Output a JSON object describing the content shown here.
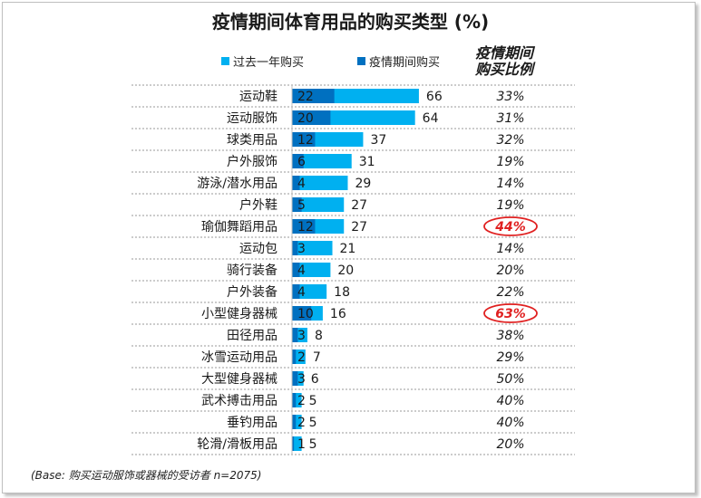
{
  "chart_data": {
    "type": "bar",
    "title": "疫情期间体育用品的购买类型 (%)",
    "categories": [
      "运动鞋",
      "运动服饰",
      "球类用品",
      "户外服饰",
      "游泳/潜水用品",
      "户外鞋",
      "瑜伽舞蹈用品",
      "运动包",
      "骑行装备",
      "户外装备",
      "小型健身器械",
      "田径用品",
      "冰雪运动用品",
      "大型健身器械",
      "武术搏击用品",
      "垂钓用品",
      "轮滑/滑板用品"
    ],
    "series": [
      {
        "name": "过去一年购买",
        "color": "#00b0f0",
        "values": [
          66,
          64,
          37,
          31,
          29,
          27,
          27,
          21,
          20,
          18,
          16,
          8,
          7,
          6,
          5,
          5,
          5
        ]
      },
      {
        "name": "疫情期间购买",
        "color": "#0070c0",
        "values": [
          22,
          20,
          12,
          6,
          4,
          5,
          12,
          3,
          4,
          4,
          10,
          3,
          2,
          3,
          2,
          2,
          1
        ]
      }
    ],
    "ratio_header": [
      "疫情期间",
      "购买比例"
    ],
    "ratio_values": [
      "33%",
      "31%",
      "32%",
      "19%",
      "14%",
      "19%",
      "44%",
      "14%",
      "20%",
      "22%",
      "63%",
      "38%",
      "29%",
      "50%",
      "40%",
      "40%",
      "20%"
    ],
    "highlighted": [
      6,
      10
    ],
    "highlight_color": "#e02020",
    "xlim": [
      0,
      100
    ],
    "legend_position": "top",
    "grid": false
  },
  "footnote": "(Base: 购买运动服饰或器械的受访者 n=2075)"
}
